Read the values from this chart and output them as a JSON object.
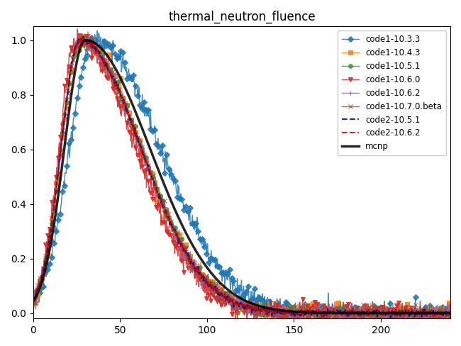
{
  "title": "thermal_neutron_fluence",
  "xlim": [
    0,
    240
  ],
  "ylim": [
    -0.02,
    1.05
  ],
  "xticks": [
    0,
    50,
    100,
    150,
    200
  ],
  "yticks": [
    0.0,
    0.2,
    0.4,
    0.6,
    0.8,
    1.0
  ],
  "series": [
    {
      "label": "code1-10.3.3",
      "color": "#1f77b4",
      "marker": "D",
      "lw": 1.0,
      "ls": "-",
      "noise": 0.018,
      "seed": 1,
      "peak": 35,
      "sigma_l": 14,
      "sigma_r": 38
    },
    {
      "label": "code1-10.4.3",
      "color": "#ff7f0e",
      "marker": "s",
      "lw": 1.0,
      "ls": "-",
      "noise": 0.015,
      "seed": 2,
      "peak": 27,
      "sigma_l": 11,
      "sigma_r": 35
    },
    {
      "label": "code1-10.5.1",
      "color": "#2ca02c",
      "marker": "o",
      "lw": 1.0,
      "ls": "-",
      "noise": 0.012,
      "seed": 3,
      "peak": 27,
      "sigma_l": 11,
      "sigma_r": 35
    },
    {
      "label": "code1-10.6.0",
      "color": "#d62728",
      "marker": "v",
      "lw": 1.0,
      "ls": "-",
      "noise": 0.02,
      "seed": 4,
      "peak": 25,
      "sigma_l": 10,
      "sigma_r": 34
    },
    {
      "label": "code1-10.6.2",
      "color": "#9467bd",
      "marker": "+",
      "lw": 1.0,
      "ls": "-",
      "noise": 0.012,
      "seed": 5,
      "peak": 27,
      "sigma_l": 11,
      "sigma_r": 35
    },
    {
      "label": "code1-10.7.0.beta",
      "color": "#8c564b",
      "marker": "x",
      "lw": 1.0,
      "ls": "-",
      "noise": 0.012,
      "seed": 6,
      "peak": 27,
      "sigma_l": 11,
      "sigma_r": 35
    },
    {
      "label": "code2-10.5.1",
      "color": "#00008b",
      "marker": "None",
      "lw": 1.5,
      "ls": "--",
      "noise": 0.006,
      "seed": 7,
      "peak": 27,
      "sigma_l": 11,
      "sigma_r": 35
    },
    {
      "label": "code2-10.6.2",
      "color": "#cc0000",
      "marker": "None",
      "lw": 1.5,
      "ls": "--",
      "noise": 0.006,
      "seed": 8,
      "peak": 27,
      "sigma_l": 11,
      "sigma_r": 35
    },
    {
      "label": "mcnp",
      "color": "#000000",
      "marker": "None",
      "lw": 2.5,
      "ls": "-",
      "noise": 0.0,
      "seed": 9,
      "peak": 30,
      "sigma_l": 12,
      "sigma_r": 37
    }
  ],
  "figsize": [
    6.5,
    4.88
  ],
  "dpi": 100
}
